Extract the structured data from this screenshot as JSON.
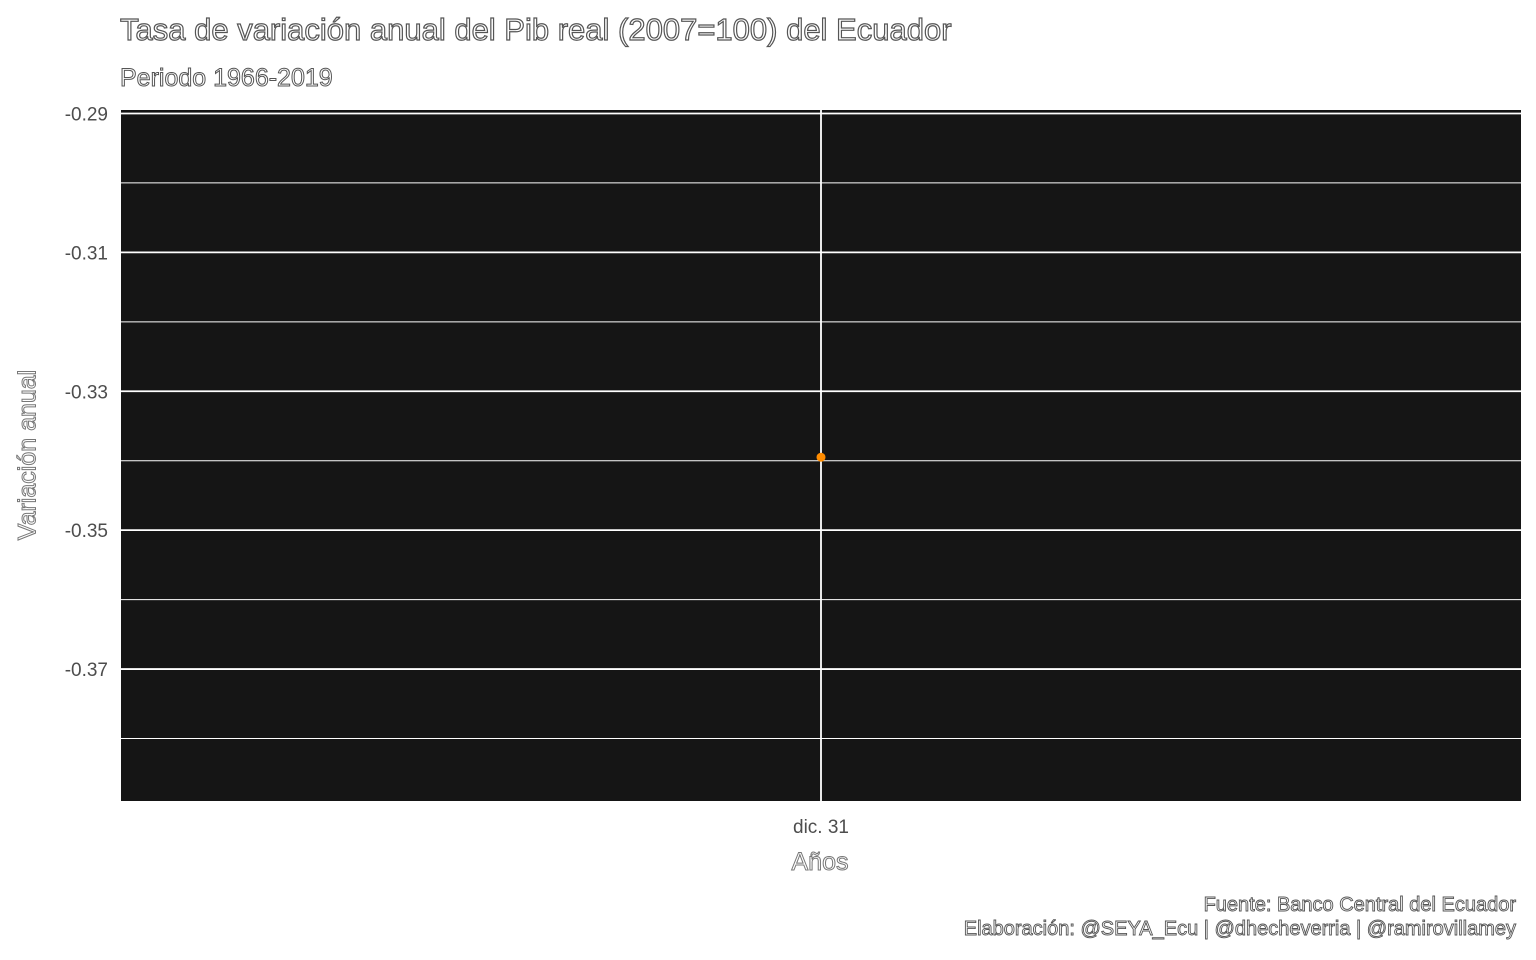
{
  "title": "Tasa de variación anual del Pib real (2007=100) del Ecuador",
  "subtitle": "Periodo 1966-2019",
  "caption_source": "Fuente: Banco Central del Ecuador",
  "caption_credit": "Elaboración: @SEYA_Ecu | @dhecheverria | @ramirovillamey",
  "colors": {
    "panel": "#151515",
    "grid": "#ffffff",
    "point": "#ff8c00",
    "tick_text": "#4d4d4d"
  },
  "chart_data": {
    "type": "scatter",
    "title": "Tasa de variación anual del Pib real (2007=100) del Ecuador",
    "subtitle": "Periodo 1966-2019",
    "xlabel": "Años",
    "ylabel": "Variación anual",
    "x_ticks": [
      "dic. 31"
    ],
    "y_ticks": [
      -0.29,
      -0.31,
      -0.33,
      -0.35,
      -0.37
    ],
    "y_tick_labels": [
      "-0.29",
      "-0.31",
      "-0.33",
      "-0.35",
      "-0.37"
    ],
    "ylim": [
      -0.389,
      -0.2895
    ],
    "grid": true,
    "legend": "none",
    "points": [
      {
        "x": "dic. 31",
        "y": -0.3395
      }
    ]
  }
}
